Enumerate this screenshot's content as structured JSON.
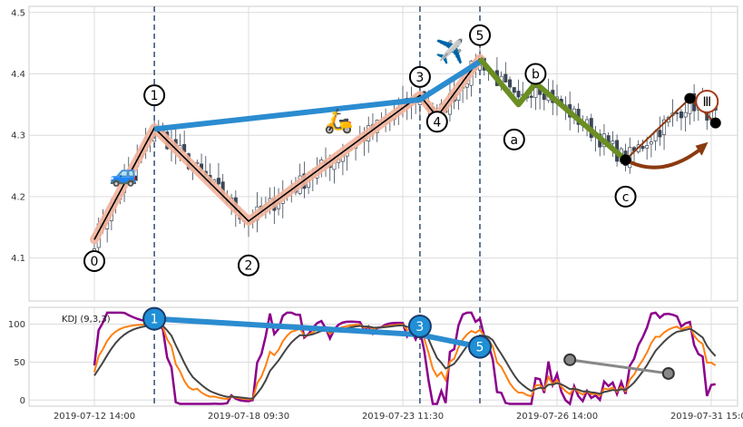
{
  "chart_data": [
    {
      "type": "candlestick",
      "ylim": [
        4.03,
        4.51
      ],
      "yticks": [
        "4.1",
        "4.2",
        "4.3",
        "4.4",
        "4.5"
      ],
      "xticks": [
        {
          "i": 0,
          "label": "2019-07-12 14:00"
        },
        {
          "i": 36,
          "label": "2019-07-18 09:30"
        },
        {
          "i": 72,
          "label": "2019-07-23 11:30"
        },
        {
          "i": 108,
          "label": "2019-07-26 14:00"
        },
        {
          "i": 144,
          "label": "2019-07-31 15:00"
        }
      ],
      "n_bars": 146,
      "markers": [
        {
          "label": "0",
          "i": 0,
          "y": 4.095
        },
        {
          "label": "1",
          "i": 14,
          "y": 4.365
        },
        {
          "label": "2",
          "i": 36,
          "y": 4.088
        },
        {
          "label": "3",
          "i": 76,
          "y": 4.395
        },
        {
          "label": "4",
          "i": 80,
          "y": 4.322
        },
        {
          "label": "5",
          "i": 90,
          "y": 4.463
        },
        {
          "label": "a",
          "i": 98,
          "y": 4.293
        },
        {
          "label": "b",
          "i": 103,
          "y": 4.4
        },
        {
          "label": "c",
          "i": 124,
          "y": 4.2
        },
        {
          "label": "Ⅲ",
          "i": 143,
          "y": 4.355
        }
      ],
      "paths": {
        "impulse": [
          [
            0,
            4.13
          ],
          [
            14,
            4.312
          ],
          [
            36,
            4.16
          ],
          [
            76,
            4.365
          ],
          [
            80,
            4.33
          ],
          [
            90,
            4.425
          ]
        ],
        "trend": [
          [
            14,
            4.31
          ],
          [
            76,
            4.358
          ],
          [
            90,
            4.42
          ]
        ],
        "correction": [
          [
            90,
            4.425
          ],
          [
            99,
            4.35
          ],
          [
            103,
            4.385
          ],
          [
            124,
            4.26
          ]
        ],
        "projection": [
          [
            124,
            4.26
          ],
          [
            139,
            4.36
          ],
          [
            145,
            4.32
          ]
        ],
        "dots": [
          [
            124,
            4.26
          ],
          [
            139,
            4.36
          ],
          [
            145,
            4.32
          ]
        ]
      },
      "icons": [
        {
          "name": "car-icon",
          "glyph": "🚙",
          "i": 7,
          "y": 4.235
        },
        {
          "name": "scooter-icon",
          "glyph": "🛵",
          "i": 57,
          "y": 4.322
        },
        {
          "name": "airplane-icon",
          "glyph": "✈️",
          "i": 83,
          "y": 4.435
        }
      ],
      "colors": {
        "up": "#ffffff",
        "down": "#3b4656",
        "impulse": "#000000",
        "impulse_glow": "#f2b49c",
        "trend": "#2b8cd0",
        "correction": "#6b8e23",
        "projection": "#8b3a0f",
        "marker_special": "#a33b1a"
      },
      "vlines": [
        14,
        76,
        90
      ]
    },
    {
      "type": "line",
      "title": "KDJ (9,3,3)",
      "ylim": [
        -8,
        122
      ],
      "yticks": [
        "0",
        "50",
        "100"
      ],
      "series_colors": {
        "K": "#ff7f0e",
        "D": "#444444",
        "J": "#8b008b"
      },
      "markers": [
        {
          "label": "1",
          "i": 14,
          "y": 107
        },
        {
          "label": "3",
          "i": 76,
          "y": 97
        },
        {
          "label": "5",
          "i": 90,
          "y": 70
        }
      ],
      "paths": {
        "trend": [
          [
            14,
            107
          ],
          [
            76,
            86
          ],
          [
            90,
            70
          ]
        ],
        "grey": [
          [
            111,
            53
          ],
          [
            134,
            35
          ]
        ]
      }
    }
  ]
}
